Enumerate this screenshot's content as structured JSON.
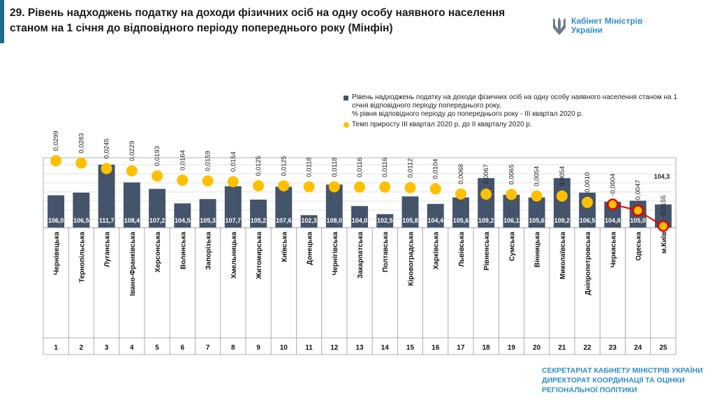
{
  "header": {
    "title": "29. Рівень надходжень податку на доходи фізичних осіб на одну особу наявного населення станом на 1 січня до відповідного періоду попереднього року (Мінфін)",
    "logo_line1": "Кабінет Міністрів",
    "logo_line2": "України"
  },
  "footer": {
    "line1": "СЕКРЕТАРІАТ КАБІНЕТУ МІНІСТРІВ УКРАЇНИ",
    "line2": "ДИРЕКТОРАТ КООРДИНАЦІЇ ТА ОЦІНКИ",
    "line3": "РЕГІОНАЛЬНОЇ ПОЛІТИКИ"
  },
  "colors": {
    "bar": "#44546a",
    "dot": "#ffc000",
    "dot_negative_border": "#e00000",
    "line": "#e00000",
    "accent": "#1f6b8a",
    "footer_text": "#2f8fc9"
  },
  "chart_data": {
    "type": "bar",
    "categories": [
      "Чернівецька",
      "Тернопільська",
      "Луганська",
      "Івано-Франківська",
      "Херсонська",
      "Волинська",
      "Запорізька",
      "Хмельницька",
      "Житомирська",
      "Київська",
      "Донецька",
      "Чернігівська",
      "Закарпатська",
      "Полтавська",
      "Кіровоградська",
      "Харківська",
      "Львівська",
      "Рівненська",
      "Сумська",
      "Вінницька",
      "Миколаївська",
      "Дніпропетровська",
      "Черкаська",
      "Одеська",
      "м.Київ"
    ],
    "ranks": [
      "1",
      "2",
      "3",
      "4",
      "5",
      "6",
      "7",
      "8",
      "9",
      "10",
      "11",
      "12",
      "13",
      "14",
      "15",
      "16",
      "17",
      "18",
      "19",
      "20",
      "21",
      "22",
      "23",
      "24",
      "25"
    ],
    "series": [
      {
        "name": "Рівень надходжень податку на доходи фізичних осіб на одну особу наявного населення станом на 1 січня відповідного періоду попереднього року,\n% рівня відповідного періоду до попереднього року  - ІІІ квартал 2020 р.",
        "type": "bar",
        "values": [
          106.0,
          106.5,
          111.7,
          108.4,
          107.2,
          104.5,
          105.3,
          107.7,
          105.2,
          107.6,
          102.3,
          108.0,
          104.0,
          102.5,
          105.8,
          104.4,
          105.6,
          109.2,
          106.1,
          105.6,
          109.2,
          106.5,
          104.8,
          105.0,
          104.3
        ],
        "labels": [
          "106,0",
          "106,5",
          "111,7",
          "108,4",
          "107,2",
          "104,5",
          "105,3",
          "107,7",
          "105,2",
          "107,6",
          "102,3",
          "108,0",
          "104,0",
          "102,5",
          "105,8",
          "104,4",
          "105,6",
          "109,2",
          "106,1",
          "105,6",
          "109,2",
          "106,5",
          "104,8",
          "105,0",
          "104,3"
        ]
      },
      {
        "name": "Темп приросту ІІІ квартал 2020 р. до ІІ кварталу 2020 р.",
        "type": "scatter",
        "values": [
          0.0299,
          0.0283,
          0.0245,
          0.0229,
          0.0193,
          0.0164,
          0.0159,
          0.0154,
          0.0125,
          0.0125,
          0.0118,
          0.0118,
          0.0116,
          0.0116,
          0.0112,
          0.0104,
          0.0068,
          0.0067,
          0.0065,
          0.0054,
          0.0054,
          0.001,
          -0.0004,
          -0.0047,
          -0.0155
        ],
        "labels": [
          "0,0299",
          "0,0283",
          "0,0245",
          "0,0229",
          "0,0193",
          "0,0164",
          "0,0159",
          "0,0154",
          "0,0125",
          "0,0125",
          "0,0118",
          "0,0118",
          "0,0116",
          "0,0116",
          "0,0112",
          "0,0104",
          "0,0068",
          "0,0067",
          "0,0065",
          "0,0054",
          "0,0054",
          "0,0010",
          "-0,0004",
          "-0,0047",
          "-0,0155"
        ]
      }
    ],
    "bar_ylim": [
      100,
      113
    ],
    "dot_ylim": [
      -0.0165,
      0.032
    ],
    "grid": true,
    "legend_position": "top-right"
  }
}
